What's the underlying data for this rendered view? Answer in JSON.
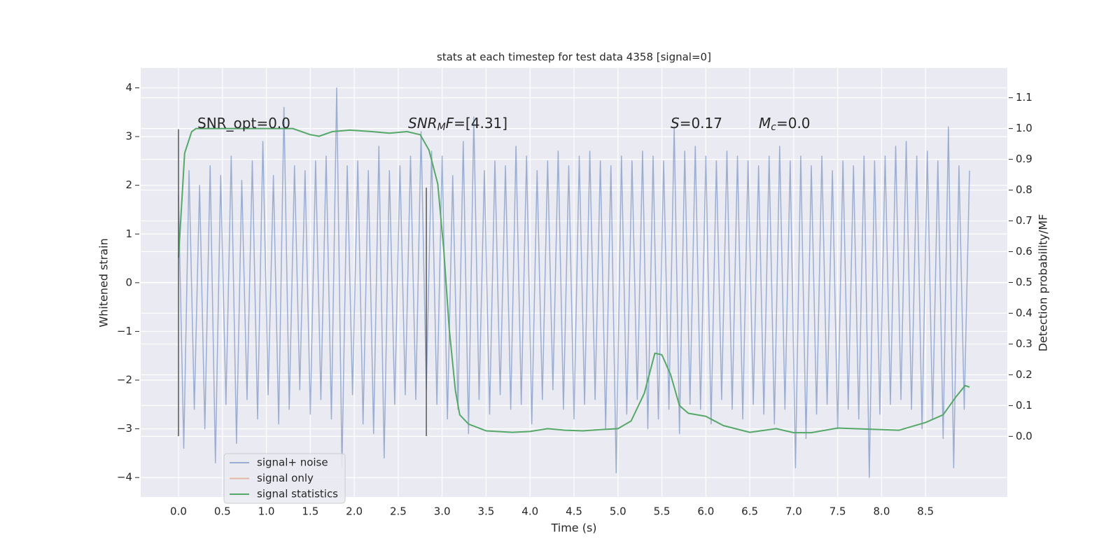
{
  "chart_data": {
    "type": "line",
    "title": "stats at each timestep for test data 4358 [signal=0]",
    "x_label": "Time (s)",
    "y_label": "Whitened strain",
    "y2_label": "Detection probability/MF",
    "xlim": [
      -0.43,
      9.43
    ],
    "ylim": [
      -4.4,
      4.41
    ],
    "y2lim": [
      -0.197,
      1.197
    ],
    "xticks": [
      {
        "value": 0,
        "label": "0.0"
      },
      0.5,
      {
        "value": 1,
        "label": "1.0"
      },
      1.5,
      {
        "value": 2,
        "label": "2.0"
      },
      2.5,
      {
        "value": 3,
        "label": "3.0"
      },
      3.5,
      {
        "value": 4,
        "label": "4.0"
      },
      4.5,
      {
        "value": 5,
        "label": "5.0"
      },
      5.5,
      {
        "value": 6,
        "label": "6.0"
      },
      6.5,
      {
        "value": 7,
        "label": "7.0"
      },
      7.5,
      {
        "value": 8,
        "label": "8.0"
      },
      8.5
    ],
    "yticks": [
      {
        "value": -4,
        "label": "−4"
      },
      {
        "value": -3,
        "label": "−3"
      },
      {
        "value": -2,
        "label": "−2"
      },
      {
        "value": -1,
        "label": "−1"
      },
      0,
      1,
      2,
      3,
      4
    ],
    "y2ticks": [
      {
        "value": 0,
        "label": "0.0"
      },
      0.1,
      0.2,
      0.3,
      0.4,
      0.5,
      0.6,
      0.7,
      0.8,
      0.9,
      {
        "value": 1,
        "label": "1.0"
      },
      1.1
    ],
    "grid": true,
    "legend": "lower left",
    "series": [
      {
        "name": "signal+ noise",
        "color": "#4c72b0",
        "opacity": 0.5,
        "x": [
          0,
          0.06,
          0.12,
          0.18,
          0.24,
          0.3,
          0.36,
          0.42,
          0.48,
          0.54,
          0.6,
          0.66,
          0.72,
          0.78,
          0.84,
          0.9,
          0.96,
          1.02,
          1.08,
          1.14,
          1.2,
          1.26,
          1.32,
          1.38,
          1.44,
          1.5,
          1.56,
          1.62,
          1.68,
          1.74,
          1.8,
          1.86,
          1.92,
          1.98,
          2.04,
          2.1,
          2.16,
          2.22,
          2.28,
          2.34,
          2.4,
          2.46,
          2.52,
          2.58,
          2.64,
          2.7,
          2.76,
          2.82,
          2.88,
          2.94,
          3,
          3.06,
          3.12,
          3.18,
          3.24,
          3.3,
          3.36,
          3.42,
          3.48,
          3.54,
          3.6,
          3.66,
          3.72,
          3.78,
          3.84,
          3.9,
          3.96,
          4.02,
          4.08,
          4.14,
          4.2,
          4.26,
          4.32,
          4.38,
          4.44,
          4.5,
          4.56,
          4.62,
          4.68,
          4.74,
          4.8,
          4.86,
          4.92,
          4.98,
          5.04,
          5.1,
          5.16,
          5.22,
          5.28,
          5.34,
          5.4,
          5.46,
          5.52,
          5.58,
          5.64,
          5.7,
          5.76,
          5.82,
          5.88,
          5.94,
          6,
          6.06,
          6.12,
          6.18,
          6.24,
          6.3,
          6.36,
          6.42,
          6.48,
          6.54,
          6.6,
          6.66,
          6.72,
          6.78,
          6.84,
          6.9,
          6.96,
          7.02,
          7.08,
          7.14,
          7.2,
          7.26,
          7.32,
          7.38,
          7.44,
          7.5,
          7.56,
          7.62,
          7.68,
          7.74,
          7.8,
          7.86,
          7.92,
          7.98,
          8.04,
          8.1,
          8.16,
          8.22,
          8.28,
          8.34,
          8.4,
          8.46,
          8.52,
          8.58,
          8.64,
          8.7,
          8.76,
          8.82,
          8.88,
          8.94,
          9
        ],
        "values": [
          1.8,
          -3.4,
          2.3,
          -2.6,
          2.0,
          -3.0,
          2.4,
          -3.7,
          2.2,
          -2.5,
          2.6,
          -3.3,
          2.1,
          -2.4,
          2.5,
          -2.8,
          2.9,
          -2.3,
          2.2,
          -2.9,
          3.6,
          -2.6,
          2.4,
          -2.2,
          2.3,
          -2.7,
          2.5,
          -2.4,
          2.6,
          -2.8,
          4.0,
          -3.8,
          2.4,
          -2.3,
          2.5,
          -2.9,
          2.3,
          -3.1,
          2.8,
          -3.6,
          2.3,
          -2.5,
          2.4,
          -2.3,
          2.6,
          -2.4,
          3.1,
          -2.2,
          2.7,
          -2.5,
          2.6,
          -2.8,
          2.2,
          -2.6,
          2.9,
          -3.1,
          3.4,
          -2.4,
          2.3,
          -2.7,
          2.5,
          -2.3,
          2.4,
          -2.6,
          2.8,
          -2.5,
          2.6,
          -2.9,
          2.3,
          -2.4,
          2.5,
          -2.2,
          2.7,
          -2.6,
          2.4,
          -2.8,
          2.6,
          -2.5,
          2.7,
          -2.4,
          2.5,
          -3.0,
          2.4,
          -3.9,
          2.6,
          -2.7,
          2.5,
          -2.4,
          2.7,
          -3.0,
          2.6,
          -2.8,
          2.5,
          -2.6,
          3.2,
          -3.1,
          2.7,
          -2.5,
          2.8,
          -2.6,
          2.6,
          -2.9,
          2.5,
          -2.4,
          2.7,
          -2.6,
          2.6,
          -2.8,
          2.5,
          -2.5,
          2.4,
          -2.7,
          2.6,
          -2.9,
          2.8,
          -2.6,
          2.5,
          -3.8,
          2.6,
          -3.2,
          2.4,
          -2.7,
          2.6,
          -2.5,
          2.3,
          -3.0,
          2.5,
          -2.6,
          2.4,
          -2.8,
          2.6,
          -4.0,
          2.5,
          -2.7,
          2.6,
          -2.5,
          2.8,
          -2.4,
          2.9,
          -2.6,
          2.6,
          -3.0,
          2.7,
          -2.8,
          2.5,
          -3.2,
          3.2,
          -3.8,
          2.4,
          -2.6,
          2.3
        ]
      },
      {
        "name": "signal only",
        "color": "#dd8452",
        "opacity": 0.5
      },
      {
        "name": "signal statistics",
        "color": "#55a868",
        "opacity": 1,
        "axis": "y2",
        "x": [
          0,
          0.07,
          0.15,
          0.2,
          0.5,
          1.0,
          1.3,
          1.5,
          1.6,
          1.75,
          1.95,
          2.2,
          2.4,
          2.6,
          2.75,
          2.85,
          2.95,
          3.02,
          3.08,
          3.15,
          3.2,
          3.3,
          3.5,
          3.8,
          4.0,
          4.2,
          4.4,
          4.6,
          4.8,
          5.0,
          5.15,
          5.3,
          5.42,
          5.5,
          5.6,
          5.7,
          5.8,
          6.0,
          6.2,
          6.5,
          6.8,
          7.0,
          7.2,
          7.5,
          7.8,
          8.2,
          8.5,
          8.7,
          8.85,
          8.95,
          9.0
        ],
        "values": [
          0.58,
          0.92,
          0.99,
          1.0,
          1.0,
          1.0,
          1.0,
          0.98,
          0.975,
          0.99,
          0.995,
          0.99,
          0.985,
          0.99,
          0.98,
          0.93,
          0.82,
          0.6,
          0.35,
          0.15,
          0.07,
          0.04,
          0.018,
          0.013,
          0.016,
          0.025,
          0.02,
          0.018,
          0.022,
          0.025,
          0.05,
          0.14,
          0.27,
          0.265,
          0.2,
          0.1,
          0.075,
          0.065,
          0.035,
          0.013,
          0.025,
          0.012,
          0.012,
          0.027,
          0.024,
          0.02,
          0.045,
          0.07,
          0.13,
          0.165,
          0.16
        ]
      }
    ],
    "markers": [
      {
        "x": 0,
        "ymin": -3.15,
        "ymax": 3.15,
        "color": "#555555"
      },
      {
        "x": 2.82,
        "ymin": -3.15,
        "ymax": 1.95,
        "color": "#555555"
      }
    ],
    "annotations": [
      [
        {
          "text": "SNR_opt=0.0"
        }
      ],
      [
        {
          "text": "SNR",
          "italic": true
        },
        {
          "text": "M",
          "italic": true,
          "sub": true
        },
        {
          "text": "F",
          "italic": true
        },
        {
          "text": "=[4.31]"
        }
      ],
      [
        {
          "text": "S",
          "italic": true
        },
        {
          "text": "=0.17"
        }
      ],
      [
        {
          "text": "M",
          "italic": true
        },
        {
          "text": "c",
          "italic": true,
          "sub": true
        },
        {
          "text": "=0.0"
        }
      ]
    ]
  }
}
